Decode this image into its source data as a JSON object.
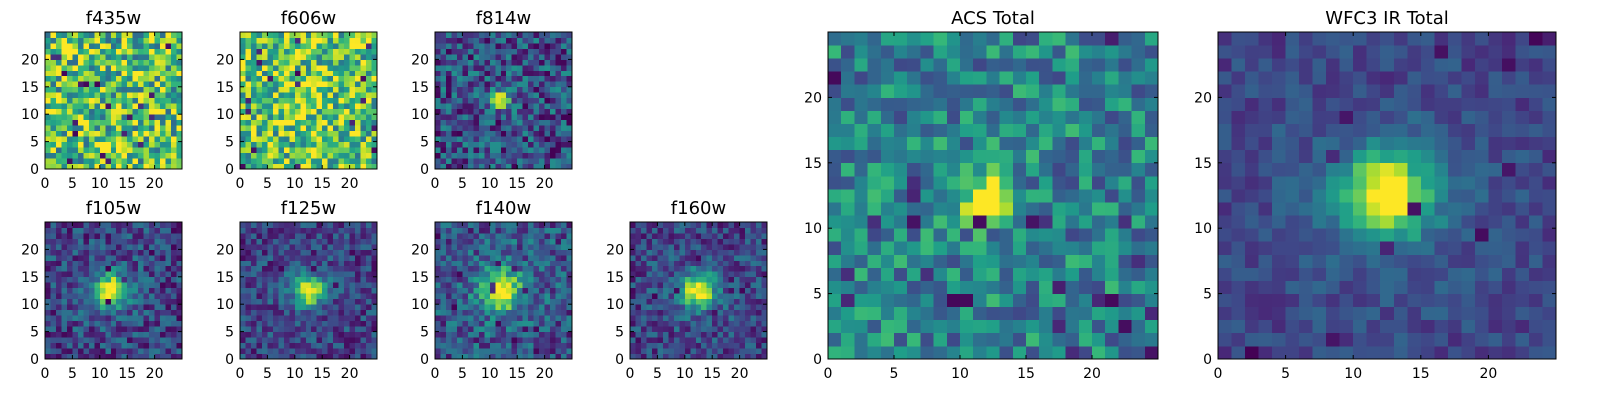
{
  "chart_data": [
    {
      "type": "heatmap",
      "title": "f435w",
      "xlim": [
        0,
        25
      ],
      "ylim": [
        0,
        25
      ],
      "xticks": [
        "0",
        "5",
        "10",
        "15",
        "20"
      ],
      "yticks": [
        "0",
        "5",
        "10",
        "15",
        "20"
      ],
      "colormap": "viridis",
      "pattern": "noise",
      "noise_level": 0.72,
      "noise_spread": 0.38,
      "peak": 0.0,
      "center": [
        12,
        12
      ],
      "sigma": 2.0,
      "halo": 0.0
    },
    {
      "type": "heatmap",
      "title": "f606w",
      "xlim": [
        0,
        25
      ],
      "ylim": [
        0,
        25
      ],
      "xticks": [
        "0",
        "5",
        "10",
        "15",
        "20"
      ],
      "yticks": [
        "0",
        "5",
        "10",
        "15",
        "20"
      ],
      "colormap": "viridis",
      "pattern": "noise",
      "noise_level": 0.72,
      "noise_spread": 0.34,
      "peak": 0.12,
      "center": [
        11,
        13
      ],
      "sigma": 3.0,
      "halo": 0.0
    },
    {
      "type": "heatmap",
      "title": "f814w",
      "xlim": [
        0,
        25
      ],
      "ylim": [
        0,
        25
      ],
      "xticks": [
        "0",
        "5",
        "10",
        "15",
        "20"
      ],
      "yticks": [
        "0",
        "5",
        "10",
        "15",
        "20"
      ],
      "colormap": "viridis",
      "pattern": "source",
      "noise_level": 0.25,
      "noise_spread": 0.26,
      "peak": 0.85,
      "center": [
        11.5,
        12
      ],
      "sigma": 1.1,
      "halo": 0.0
    },
    {
      "type": "heatmap",
      "title": "f105w",
      "xlim": [
        0,
        25
      ],
      "ylim": [
        0,
        25
      ],
      "xticks": [
        "0",
        "5",
        "10",
        "15",
        "20"
      ],
      "yticks": [
        "0",
        "5",
        "10",
        "15",
        "20"
      ],
      "colormap": "viridis",
      "pattern": "source",
      "noise_level": 0.2,
      "noise_spread": 0.2,
      "peak": 0.8,
      "center": [
        11.5,
        12
      ],
      "sigma": 1.9,
      "halo": 0.1
    },
    {
      "type": "heatmap",
      "title": "f125w",
      "xlim": [
        0,
        25
      ],
      "ylim": [
        0,
        25
      ],
      "xticks": [
        "0",
        "5",
        "10",
        "15",
        "20"
      ],
      "yticks": [
        "0",
        "5",
        "10",
        "15",
        "20"
      ],
      "colormap": "viridis",
      "pattern": "source",
      "noise_level": 0.2,
      "noise_spread": 0.18,
      "peak": 0.82,
      "center": [
        12,
        12
      ],
      "sigma": 1.8,
      "halo": 0.08
    },
    {
      "type": "heatmap",
      "title": "f140w",
      "xlim": [
        0,
        25
      ],
      "ylim": [
        0,
        25
      ],
      "xticks": [
        "0",
        "5",
        "10",
        "15",
        "20"
      ],
      "yticks": [
        "0",
        "5",
        "10",
        "15",
        "20"
      ],
      "colormap": "viridis",
      "pattern": "source",
      "noise_level": 0.24,
      "noise_spread": 0.22,
      "peak": 0.75,
      "center": [
        11.5,
        12
      ],
      "sigma": 2.4,
      "halo": 0.12
    },
    {
      "type": "heatmap",
      "title": "f160w",
      "xlim": [
        0,
        25
      ],
      "ylim": [
        0,
        25
      ],
      "xticks": [
        "0",
        "5",
        "10",
        "15",
        "20"
      ],
      "yticks": [
        "0",
        "5",
        "10",
        "15",
        "20"
      ],
      "colormap": "viridis",
      "pattern": "source",
      "noise_level": 0.2,
      "noise_spread": 0.18,
      "peak": 0.8,
      "center": [
        12,
        12
      ],
      "sigma": 2.0,
      "halo": 0.1
    },
    {
      "type": "heatmap",
      "title": "ACS Total",
      "xlim": [
        0,
        25
      ],
      "ylim": [
        0,
        25
      ],
      "xticks": [
        "0",
        "5",
        "10",
        "15",
        "20"
      ],
      "yticks": [
        "0",
        "5",
        "10",
        "15",
        "20"
      ],
      "colormap": "viridis",
      "pattern": "source",
      "noise_level": 0.45,
      "noise_spread": 0.24,
      "peak": 0.65,
      "center": [
        11.5,
        12
      ],
      "sigma": 1.3,
      "halo": 0.0
    },
    {
      "type": "heatmap",
      "title": "WFC3 IR Total",
      "xlim": [
        0,
        25
      ],
      "ylim": [
        0,
        25
      ],
      "xticks": [
        "0",
        "5",
        "10",
        "15",
        "20"
      ],
      "yticks": [
        "0",
        "5",
        "10",
        "15",
        "20"
      ],
      "colormap": "viridis",
      "pattern": "source",
      "noise_level": 0.2,
      "noise_spread": 0.1,
      "peak": 0.85,
      "center": [
        12,
        12
      ],
      "sigma": 2.2,
      "halo": 0.1
    }
  ]
}
